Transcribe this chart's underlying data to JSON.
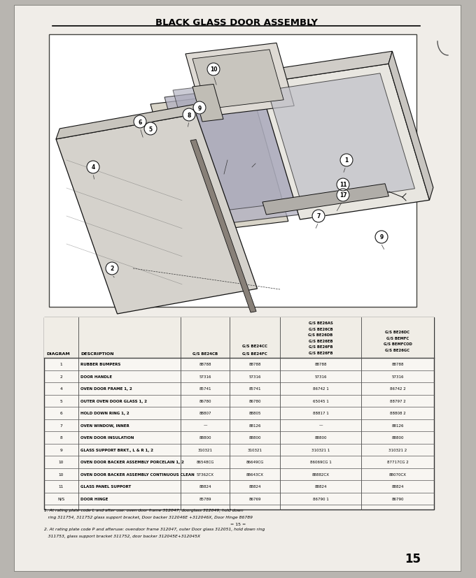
{
  "title": "BLACK GLASS DOOR ASSEMBLY",
  "outer_bg": "#b8b5b0",
  "page_bg": "#f0ede8",
  "diagram_bg": "#ffffff",
  "table_bg": "#f8f6f2",
  "table_headers_line1": [
    "",
    "",
    "",
    "G/S BE24CC",
    "G/S BE26AS",
    "G/S BE26DC"
  ],
  "table_headers_line2": [
    "",
    "",
    "",
    "",
    "G/S BE26CB",
    "G/S BEMFC"
  ],
  "table_headers_line3": [
    "",
    "",
    "",
    "G/S BE24FC",
    "G/S BE26DB",
    "G/S BEMFCOD"
  ],
  "table_headers_line4": [
    "",
    "",
    "",
    "",
    "G/S BE26EB",
    ""
  ],
  "table_headers_line5": [
    "",
    "",
    "",
    "",
    "G/S BE26FB",
    "G/S BE26GC"
  ],
  "table_headers_bottom": [
    "DIAGRAM",
    "DESCRIPTION",
    "G/S BE24CB",
    "G/S BE24CC\nG/S BE24FC",
    "G/S BE26AS\nG/S BE26CB\nG/S BE26DB\nG/S BE26EB\nG/S BE26FB\nG/S BE26FB",
    "G/S BE26DC\nG/S BEMFC\nG/S BEMFCOD\nG/S BE26GC"
  ],
  "table_rows": [
    [
      "1",
      "RUBBER BUMPERS",
      "88788",
      "88788",
      "88788",
      "88788"
    ],
    [
      "2",
      "DOOR HANDLE",
      "57316",
      "57316",
      "57316",
      "57316"
    ],
    [
      "4",
      "OVEN DOOR FRAME 1, 2",
      "85741",
      "85741",
      "86742 1",
      "86742 2"
    ],
    [
      "5",
      "OUTER OVEN DOOR GLASS 1, 2",
      "86780",
      "86780",
      "65045 1",
      "88797 2"
    ],
    [
      "6",
      "HOLD DOWN RING 1, 2",
      "88807",
      "88805",
      "88817 1",
      "88808 2"
    ],
    [
      "7",
      "OVEN WINDOW, INNER",
      "—",
      "88126",
      "—",
      "88126"
    ],
    [
      "8",
      "OVEN DOOR INSULATION",
      "88800",
      "88800",
      "88800",
      "88800"
    ],
    [
      "9",
      "GLASS SUPPORT BRKT., L & R 1, 2",
      "310321",
      "310321",
      "310321 1",
      "310321 2"
    ],
    [
      "10",
      "OVEN DOOR BACKER ASSEMBLY PORCELAIN 1, 2",
      "86548CG",
      "86649CG",
      "86069CG 1",
      "87717CG 2"
    ],
    [
      "10",
      "OVEN DOOR BACKER ASSEMBLY CONTINUOUS CLEAN",
      "57362CX",
      "88643CX",
      "88882CX",
      "88070CX"
    ],
    [
      "11",
      "GLASS PANEL SUPPORT",
      "88824",
      "88824",
      "88824",
      "88824"
    ],
    [
      "N/S",
      "DOOR HINGE",
      "85789",
      "86769",
      "86790 1",
      "86790"
    ]
  ],
  "footnote1": "1. At rating plate code L and after use: oven door frame 312047, doorglass 312049, hold down",
  "footnote1b": "   ring 311754, 311752 glass support bracket, Door backer 312046E +312046X, Door Hinge 86789",
  "footnote_mid": "= 15 =",
  "footnote2": "2. At rating plate code P and afteruse: ovendoor frame 312047, outer Door glass 312051, hold down ring",
  "footnote2b": "   311753, glass support bracket 311752, door backer 312045E+312045X",
  "page_number": "15"
}
